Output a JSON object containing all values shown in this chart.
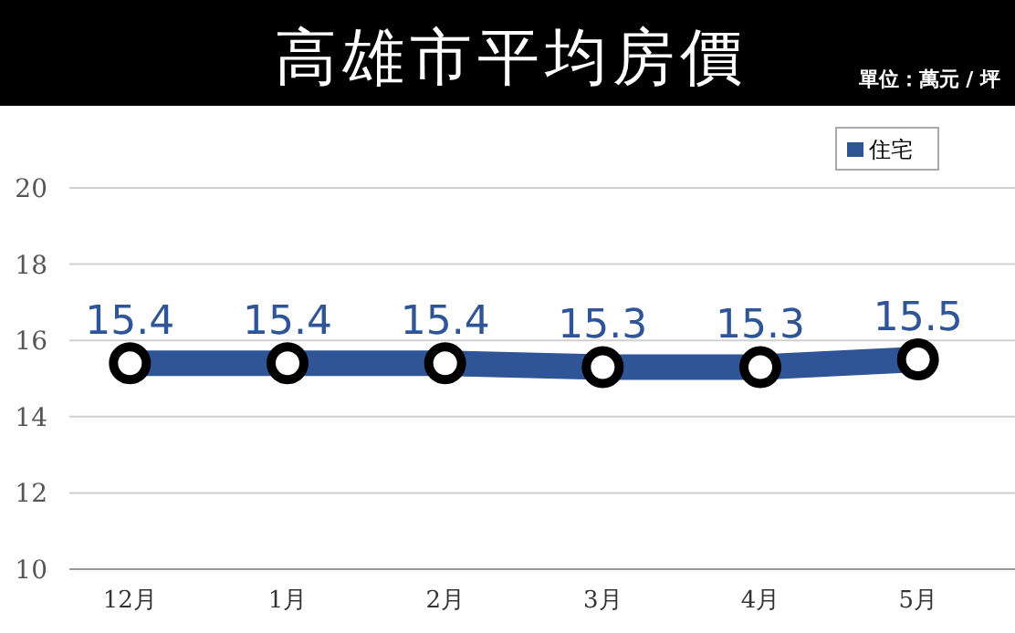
{
  "chart_data": {
    "type": "line",
    "title": "高雄市平均房價",
    "annotations": [
      "單位：萬元 / 坪"
    ],
    "categories": [
      "12月",
      "1月",
      "2月",
      "3月",
      "4月",
      "5月"
    ],
    "series": [
      {
        "name": "住宅",
        "color": "#2f5597",
        "values": [
          15.4,
          15.4,
          15.4,
          15.3,
          15.3,
          15.5
        ]
      }
    ],
    "ylim": [
      10,
      20
    ],
    "yticks": [
      10,
      12,
      14,
      16,
      18,
      20
    ],
    "grid": "y",
    "legend": "top right",
    "marker": "circle",
    "line_style": "solid",
    "data_labels": true
  }
}
